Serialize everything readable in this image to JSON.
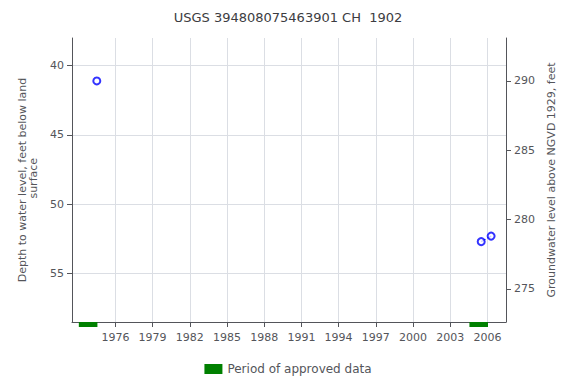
{
  "chart_data": {
    "type": "scatter",
    "title": "USGS 394808075463901 CH  1902",
    "y_label": "Depth to water level, feet below land\n surface",
    "y2_label": "Groundwater level above NGVD 1929, feet",
    "xlim": [
      1972.5,
      2007.5
    ],
    "xticks": [
      1976,
      1979,
      1982,
      1985,
      1988,
      1991,
      1994,
      1997,
      2000,
      2003,
      2006
    ],
    "ylim": [
      58.5,
      38.0
    ],
    "yticks": [
      40,
      45,
      50,
      55
    ],
    "y2lim": [
      272.6,
      293.1
    ],
    "y2ticks": [
      275,
      280,
      285,
      290
    ],
    "grid": true,
    "legend": "bottom",
    "series": [
      {
        "type": "line",
        "color": "#0000ff",
        "line_style": "dashed",
        "marker": "none",
        "x": [
          2005.5,
          2006.3
        ],
        "values": [
          52.7,
          52.3
        ]
      },
      {
        "type": "scatter",
        "color": "#0000ff",
        "marker": "open_circle",
        "x": [
          1974.5,
          2005.5,
          2006.3
        ],
        "values": [
          41.1,
          52.7,
          52.3
        ]
      },
      {
        "type": "bar",
        "name": "Period of approved data",
        "color": "#008000",
        "x": [
          1973.8,
          2005.3
        ],
        "widths": [
          1.5,
          1.5
        ]
      }
    ]
  }
}
